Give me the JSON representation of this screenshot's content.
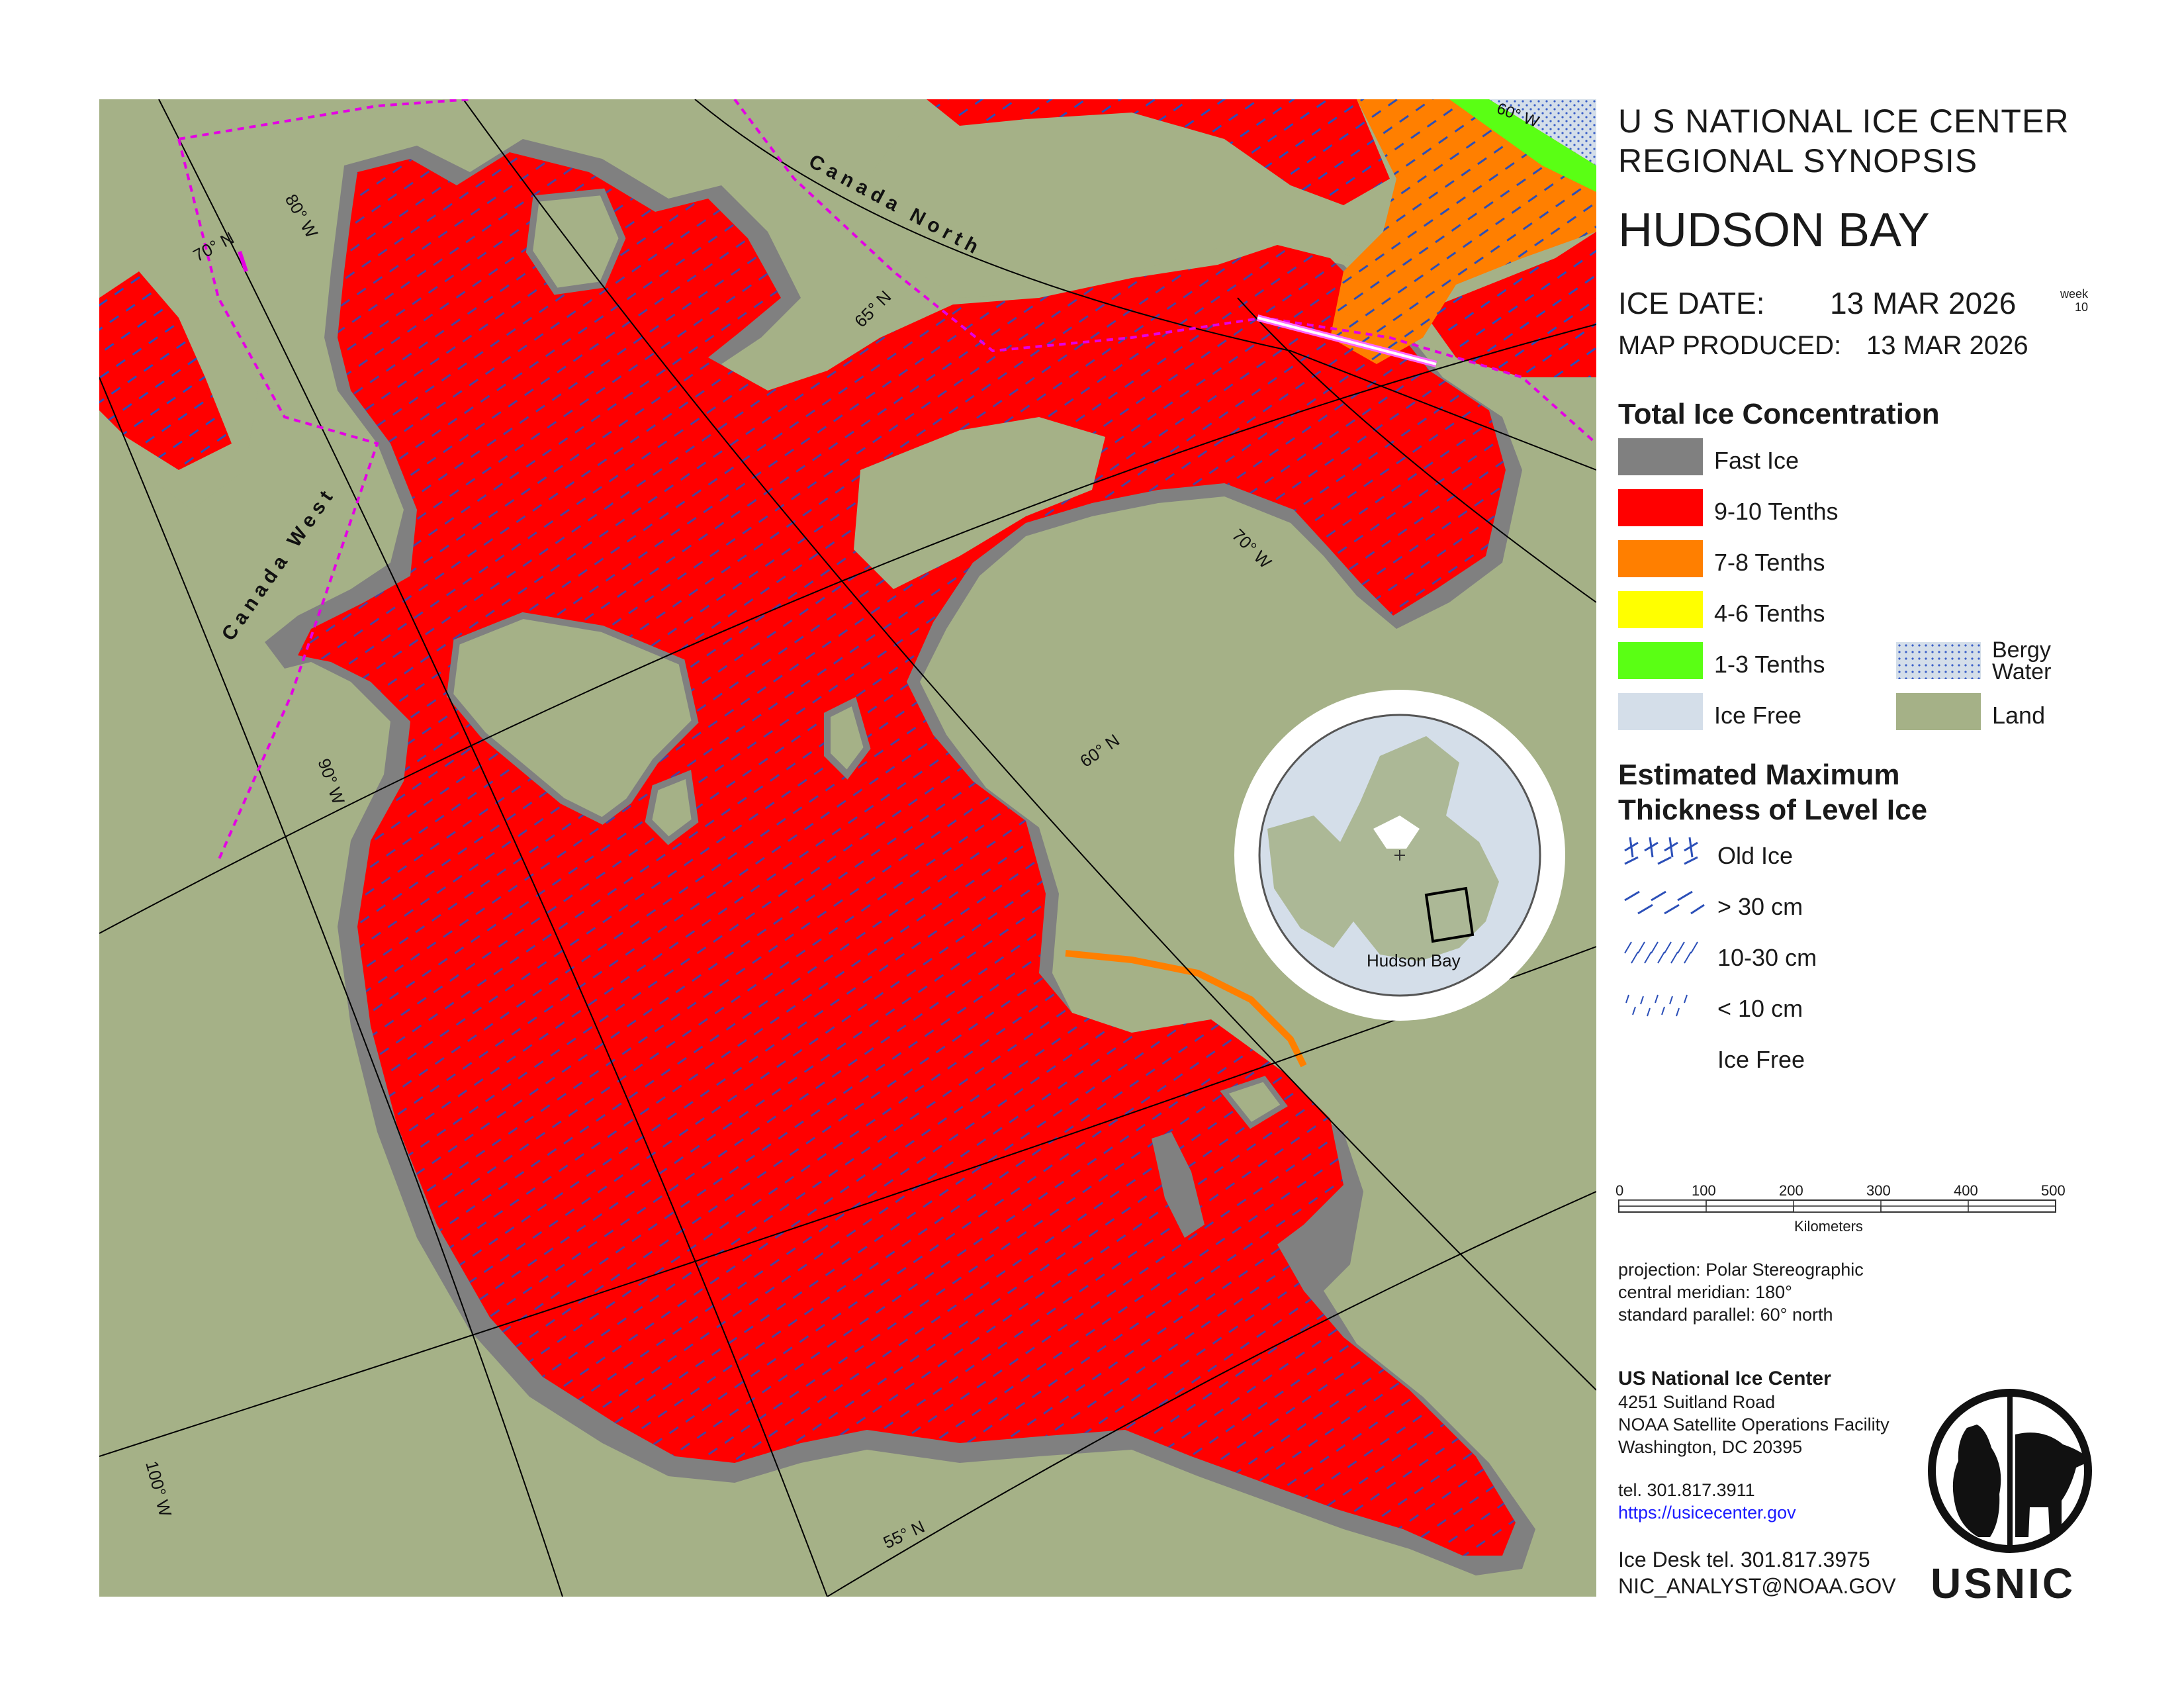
{
  "header": {
    "agency_line1": "U S NATIONAL ICE CENTER",
    "agency_line2": "REGIONAL SYNOPSIS",
    "region": "HUDSON BAY",
    "ice_date_label": "ICE DATE:",
    "ice_date": "13 MAR 2026",
    "week_label": "week",
    "week_number": "10",
    "map_produced_label": "MAP PRODUCED:",
    "map_produced": "13 MAR 2026"
  },
  "concentration_legend": {
    "title": "Total Ice Concentration",
    "items": [
      {
        "label": "Fast Ice",
        "color": "#808080"
      },
      {
        "label": "9-10 Tenths",
        "color": "#ff0000"
      },
      {
        "label": "7-8 Tenths",
        "color": "#ff7f00"
      },
      {
        "label": "4-6 Tenths",
        "color": "#ffff00"
      },
      {
        "label": "1-3 Tenths",
        "color": "#5aff14"
      },
      {
        "label": "Ice Free",
        "color": "#d4dee9"
      }
    ],
    "extra": [
      {
        "label_line1": "Bergy",
        "label_line2": "Water",
        "color": "#d4dee9"
      },
      {
        "label": "Land",
        "color": "#a5b187"
      }
    ]
  },
  "thickness_legend": {
    "title_line1": "Estimated Maximum",
    "title_line2": "Thickness of Level Ice",
    "items": [
      "Old Ice",
      "> 30 cm",
      "10-30 cm",
      "< 10 cm",
      "Ice Free"
    ]
  },
  "scale_bar": {
    "ticks": [
      "0",
      "100",
      "200",
      "300",
      "400",
      "500"
    ],
    "unit": "Kilometers"
  },
  "projection": {
    "line1": "projection: Polar Stereographic",
    "line2": "central meridian: 180°",
    "line3": "standard parallel:  60° north"
  },
  "contact": {
    "org": "US National Ice Center",
    "address1": "4251 Suitland Road",
    "address2": "NOAA Satellite Operations Facility",
    "address3": "Washington, DC  20395",
    "tel": "tel. 301.817.3911",
    "url": "https://usicecenter.gov",
    "desk_tel": "Ice Desk tel. 301.817.3975",
    "email": "NIC_ANALYST@NOAA.GOV",
    "logo_text": "USNIC"
  },
  "map": {
    "inset_label": "Hudson Bay",
    "zone_labels": [
      "Canada North",
      "Canada West"
    ],
    "grid_labels": [
      "80° W",
      "70° N",
      "65° N",
      "70° W",
      "60° N",
      "90° W",
      "100° W",
      "55° N",
      "60° W"
    ],
    "colors": {
      "land": "#a5b187",
      "ice_9_10": "#ff0000",
      "ice_7_8": "#ff7f00",
      "ice_1_3": "#5aff14",
      "fast_ice": "#808080",
      "ice_free": "#d4dee9",
      "thickness_dash": "#2b4fb8",
      "zone_boundary": "#e400e4"
    }
  }
}
